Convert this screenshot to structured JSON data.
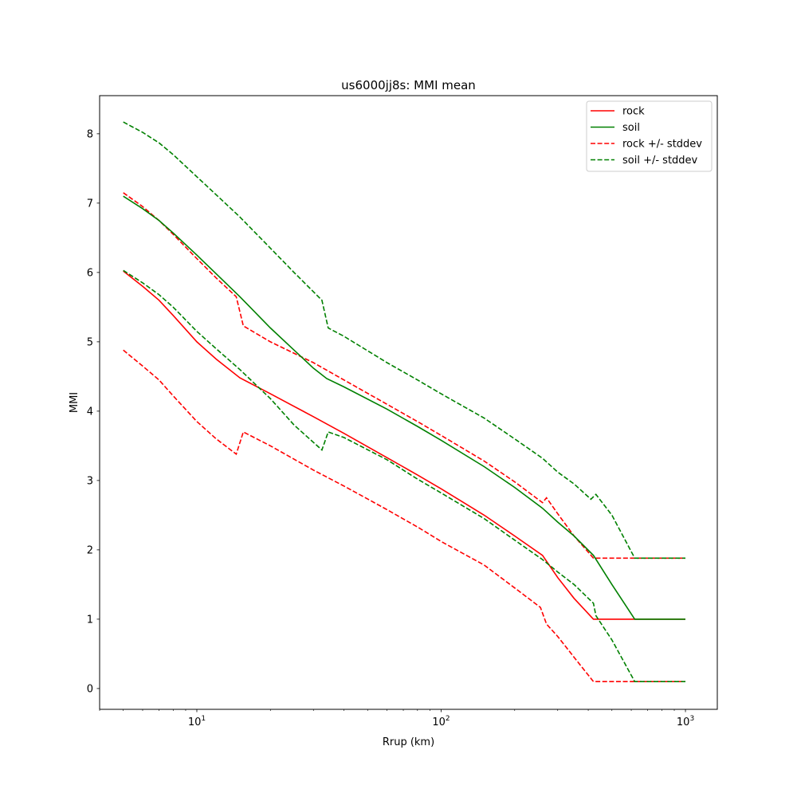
{
  "chart_data": {
    "type": "line",
    "title": "us6000jj8s: MMI mean",
    "xlabel": "Rrup (km)",
    "ylabel": "MMI",
    "xscale": "log",
    "xlim": [
      4.0,
      1350
    ],
    "ylim": [
      -0.3,
      8.55
    ],
    "yticks": [
      0,
      1,
      2,
      3,
      4,
      5,
      6,
      7,
      8
    ],
    "xticks": [
      {
        "value": 10,
        "base": "10",
        "exp": "1"
      },
      {
        "value": 100,
        "base": "10",
        "exp": "2"
      },
      {
        "value": 1000,
        "base": "10",
        "exp": "3"
      }
    ],
    "grid": false,
    "legend_position": "top-right",
    "series": [
      {
        "name": "rock",
        "color": "#ff0000",
        "style": "solid",
        "x": [
          5,
          6,
          7,
          8,
          10,
          12,
          15,
          20,
          30,
          40,
          60,
          80,
          100,
          150,
          200,
          260,
          300,
          350,
          420,
          500,
          600,
          700,
          800,
          1000
        ],
        "y": [
          6.02,
          5.8,
          5.6,
          5.38,
          5.0,
          4.75,
          4.48,
          4.25,
          3.92,
          3.68,
          3.33,
          3.08,
          2.88,
          2.5,
          2.2,
          1.92,
          1.6,
          1.3,
          1.0,
          1.0,
          1.0,
          1.0,
          1.0,
          1.0
        ]
      },
      {
        "name": "rock (+stddev)",
        "color": "#ff0000",
        "style": "dashed",
        "x": [
          5,
          6,
          7,
          8,
          10,
          12,
          14.5,
          15.5,
          20,
          30,
          40,
          60,
          80,
          100,
          150,
          200,
          260,
          270,
          300,
          350,
          420,
          500,
          600,
          700,
          800,
          1000
        ],
        "y": [
          7.15,
          6.95,
          6.75,
          6.55,
          6.2,
          5.92,
          5.65,
          5.23,
          5.0,
          4.7,
          4.45,
          4.1,
          3.85,
          3.65,
          3.28,
          2.98,
          2.68,
          2.75,
          2.52,
          2.2,
          1.88,
          1.88,
          1.88,
          1.88,
          1.88,
          1.88
        ]
      },
      {
        "name": "rock (-stddev)",
        "color": "#ff0000",
        "style": "dashed",
        "x": [
          5,
          6,
          7,
          8,
          10,
          12,
          14.5,
          15.5,
          20,
          30,
          40,
          60,
          80,
          100,
          150,
          200,
          255,
          270,
          300,
          350,
          420,
          500,
          600,
          700,
          800,
          1000
        ],
        "y": [
          4.88,
          4.65,
          4.45,
          4.22,
          3.85,
          3.6,
          3.38,
          3.7,
          3.5,
          3.15,
          2.92,
          2.58,
          2.33,
          2.12,
          1.78,
          1.45,
          1.17,
          0.93,
          0.75,
          0.45,
          0.1,
          0.1,
          0.1,
          0.1,
          0.1,
          0.1
        ]
      },
      {
        "name": "soil",
        "color": "#008000",
        "style": "solid",
        "x": [
          5,
          6,
          7,
          8,
          10,
          12,
          15,
          20,
          25,
          30,
          34,
          40,
          60,
          80,
          100,
          150,
          200,
          260,
          300,
          350,
          420,
          500,
          620,
          700,
          800,
          1000
        ],
        "y": [
          7.1,
          6.92,
          6.75,
          6.57,
          6.25,
          5.98,
          5.65,
          5.2,
          4.88,
          4.62,
          4.47,
          4.35,
          4.03,
          3.78,
          3.58,
          3.2,
          2.9,
          2.6,
          2.4,
          2.2,
          1.92,
          1.5,
          1.0,
          1.0,
          1.0,
          1.0
        ]
      },
      {
        "name": "soil (+stddev)",
        "color": "#008000",
        "style": "dashed",
        "x": [
          5,
          6,
          7,
          8,
          10,
          12,
          15,
          20,
          25,
          32.5,
          34.5,
          40,
          60,
          80,
          100,
          150,
          200,
          260,
          300,
          350,
          410,
          430,
          500,
          620,
          700,
          800,
          1000
        ],
        "y": [
          8.17,
          8.02,
          7.87,
          7.7,
          7.38,
          7.12,
          6.8,
          6.35,
          6.0,
          5.6,
          5.2,
          5.08,
          4.7,
          4.45,
          4.25,
          3.9,
          3.6,
          3.32,
          3.12,
          2.95,
          2.73,
          2.8,
          2.5,
          1.88,
          1.88,
          1.88,
          1.88
        ]
      },
      {
        "name": "soil (-stddev)",
        "color": "#008000",
        "style": "dashed",
        "x": [
          5,
          6,
          7,
          8,
          10,
          12,
          15,
          20,
          25,
          32.5,
          34.5,
          40,
          60,
          80,
          100,
          150,
          200,
          260,
          300,
          350,
          420,
          430,
          500,
          620,
          700,
          800,
          1000
        ],
        "y": [
          6.03,
          5.85,
          5.68,
          5.5,
          5.15,
          4.9,
          4.6,
          4.18,
          3.8,
          3.44,
          3.7,
          3.62,
          3.3,
          3.02,
          2.82,
          2.45,
          2.14,
          1.86,
          1.68,
          1.5,
          1.23,
          1.05,
          0.7,
          0.1,
          0.1,
          0.1,
          0.1
        ]
      }
    ],
    "legend": [
      {
        "label": "rock",
        "color": "#ff0000",
        "style": "solid"
      },
      {
        "label": "soil",
        "color": "#008000",
        "style": "solid"
      },
      {
        "label": "rock +/- stddev",
        "color": "#ff0000",
        "style": "dashed"
      },
      {
        "label": "soil +/- stddev",
        "color": "#008000",
        "style": "dashed"
      }
    ]
  }
}
